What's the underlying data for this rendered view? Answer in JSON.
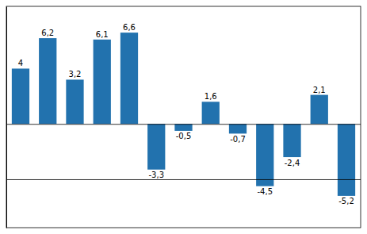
{
  "chart_data": {
    "type": "bar",
    "categories": [
      null,
      null,
      null,
      null,
      null,
      null,
      null,
      null,
      null,
      null,
      null,
      null,
      null
    ],
    "values": [
      4,
      6.2,
      3.2,
      6.1,
      6.6,
      -3.3,
      -0.5,
      1.6,
      -0.7,
      -4.5,
      -2.4,
      2.1,
      -5.2
    ],
    "value_labels": [
      "4",
      "6,2",
      "3,2",
      "6,1",
      "6,6",
      "-3,3",
      "-0,5",
      "1,6",
      "-0,7",
      "-4,5",
      "-2,4",
      "2,1",
      "-5,2"
    ],
    "data_labels": true,
    "color": "#2272AE",
    "ylim": [
      -7.5,
      8.5
    ],
    "yticks": [
      -4,
      0
    ],
    "grid": true,
    "tick_labels": false
  }
}
